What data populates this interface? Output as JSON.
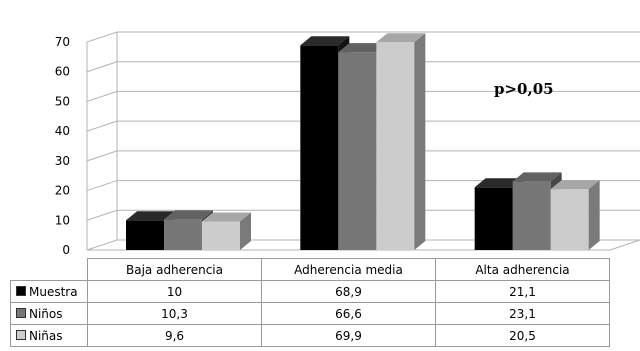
{
  "chart_data": {
    "type": "bar",
    "categories": [
      "Baja adherencia",
      "Adherencia media",
      "Alta adherencia"
    ],
    "series": [
      {
        "name": "Muestra",
        "values": [
          10,
          68.9,
          21.1
        ],
        "labels": [
          "10",
          "68,9",
          "21,1"
        ],
        "color": "#000000"
      },
      {
        "name": "Niños",
        "values": [
          10.3,
          66.6,
          23.1
        ],
        "labels": [
          "10,3",
          "66,6",
          "23,1"
        ],
        "color": "#777777"
      },
      {
        "name": "Niñas",
        "values": [
          9.6,
          69.9,
          20.5
        ],
        "labels": [
          "9,6",
          "69,9",
          "20,5"
        ],
        "color": "#cccccc"
      }
    ],
    "y_ticks": [
      "0",
      "10",
      "20",
      "30",
      "40",
      "50",
      "60",
      "70"
    ],
    "ylim": [
      0,
      70
    ],
    "grid": true,
    "bar_style": "3d",
    "legend": "data-table",
    "annotation": "p>0,05"
  }
}
